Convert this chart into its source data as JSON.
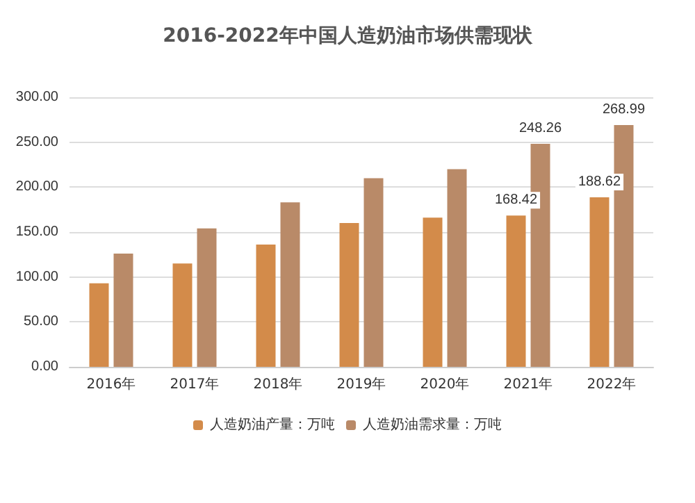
{
  "chart_data": {
    "type": "bar",
    "title": "2016-2022年中国人造奶油市场供需现状",
    "categories": [
      "2016年",
      "2017年",
      "2018年",
      "2019年",
      "2020年",
      "2021年",
      "2022年"
    ],
    "series": [
      {
        "name": "人造奶油产量：万吨",
        "color": "#d38b4a",
        "values": [
          93,
          115,
          136,
          160,
          166,
          168.42,
          188.62
        ],
        "value_labels": [
          null,
          null,
          null,
          null,
          null,
          "168.42",
          "188.62"
        ]
      },
      {
        "name": "人造奶油需求量：万吨",
        "color": "#b98a68",
        "values": [
          126,
          154,
          183,
          210,
          220,
          248.26,
          268.99
        ],
        "value_labels": [
          null,
          null,
          null,
          null,
          null,
          "248.26",
          "268.99"
        ]
      }
    ],
    "ylim": [
      0,
      300
    ],
    "yticks": [
      {
        "value": 0,
        "label": "0.00"
      },
      {
        "value": 50,
        "label": "50.00"
      },
      {
        "value": 100,
        "label": "100.00"
      },
      {
        "value": 150,
        "label": "150.00"
      },
      {
        "value": 200,
        "label": "200.00"
      },
      {
        "value": 250,
        "label": "250.00"
      },
      {
        "value": 300,
        "label": "300.00"
      }
    ],
    "grid": "y",
    "legend": "bottom"
  }
}
